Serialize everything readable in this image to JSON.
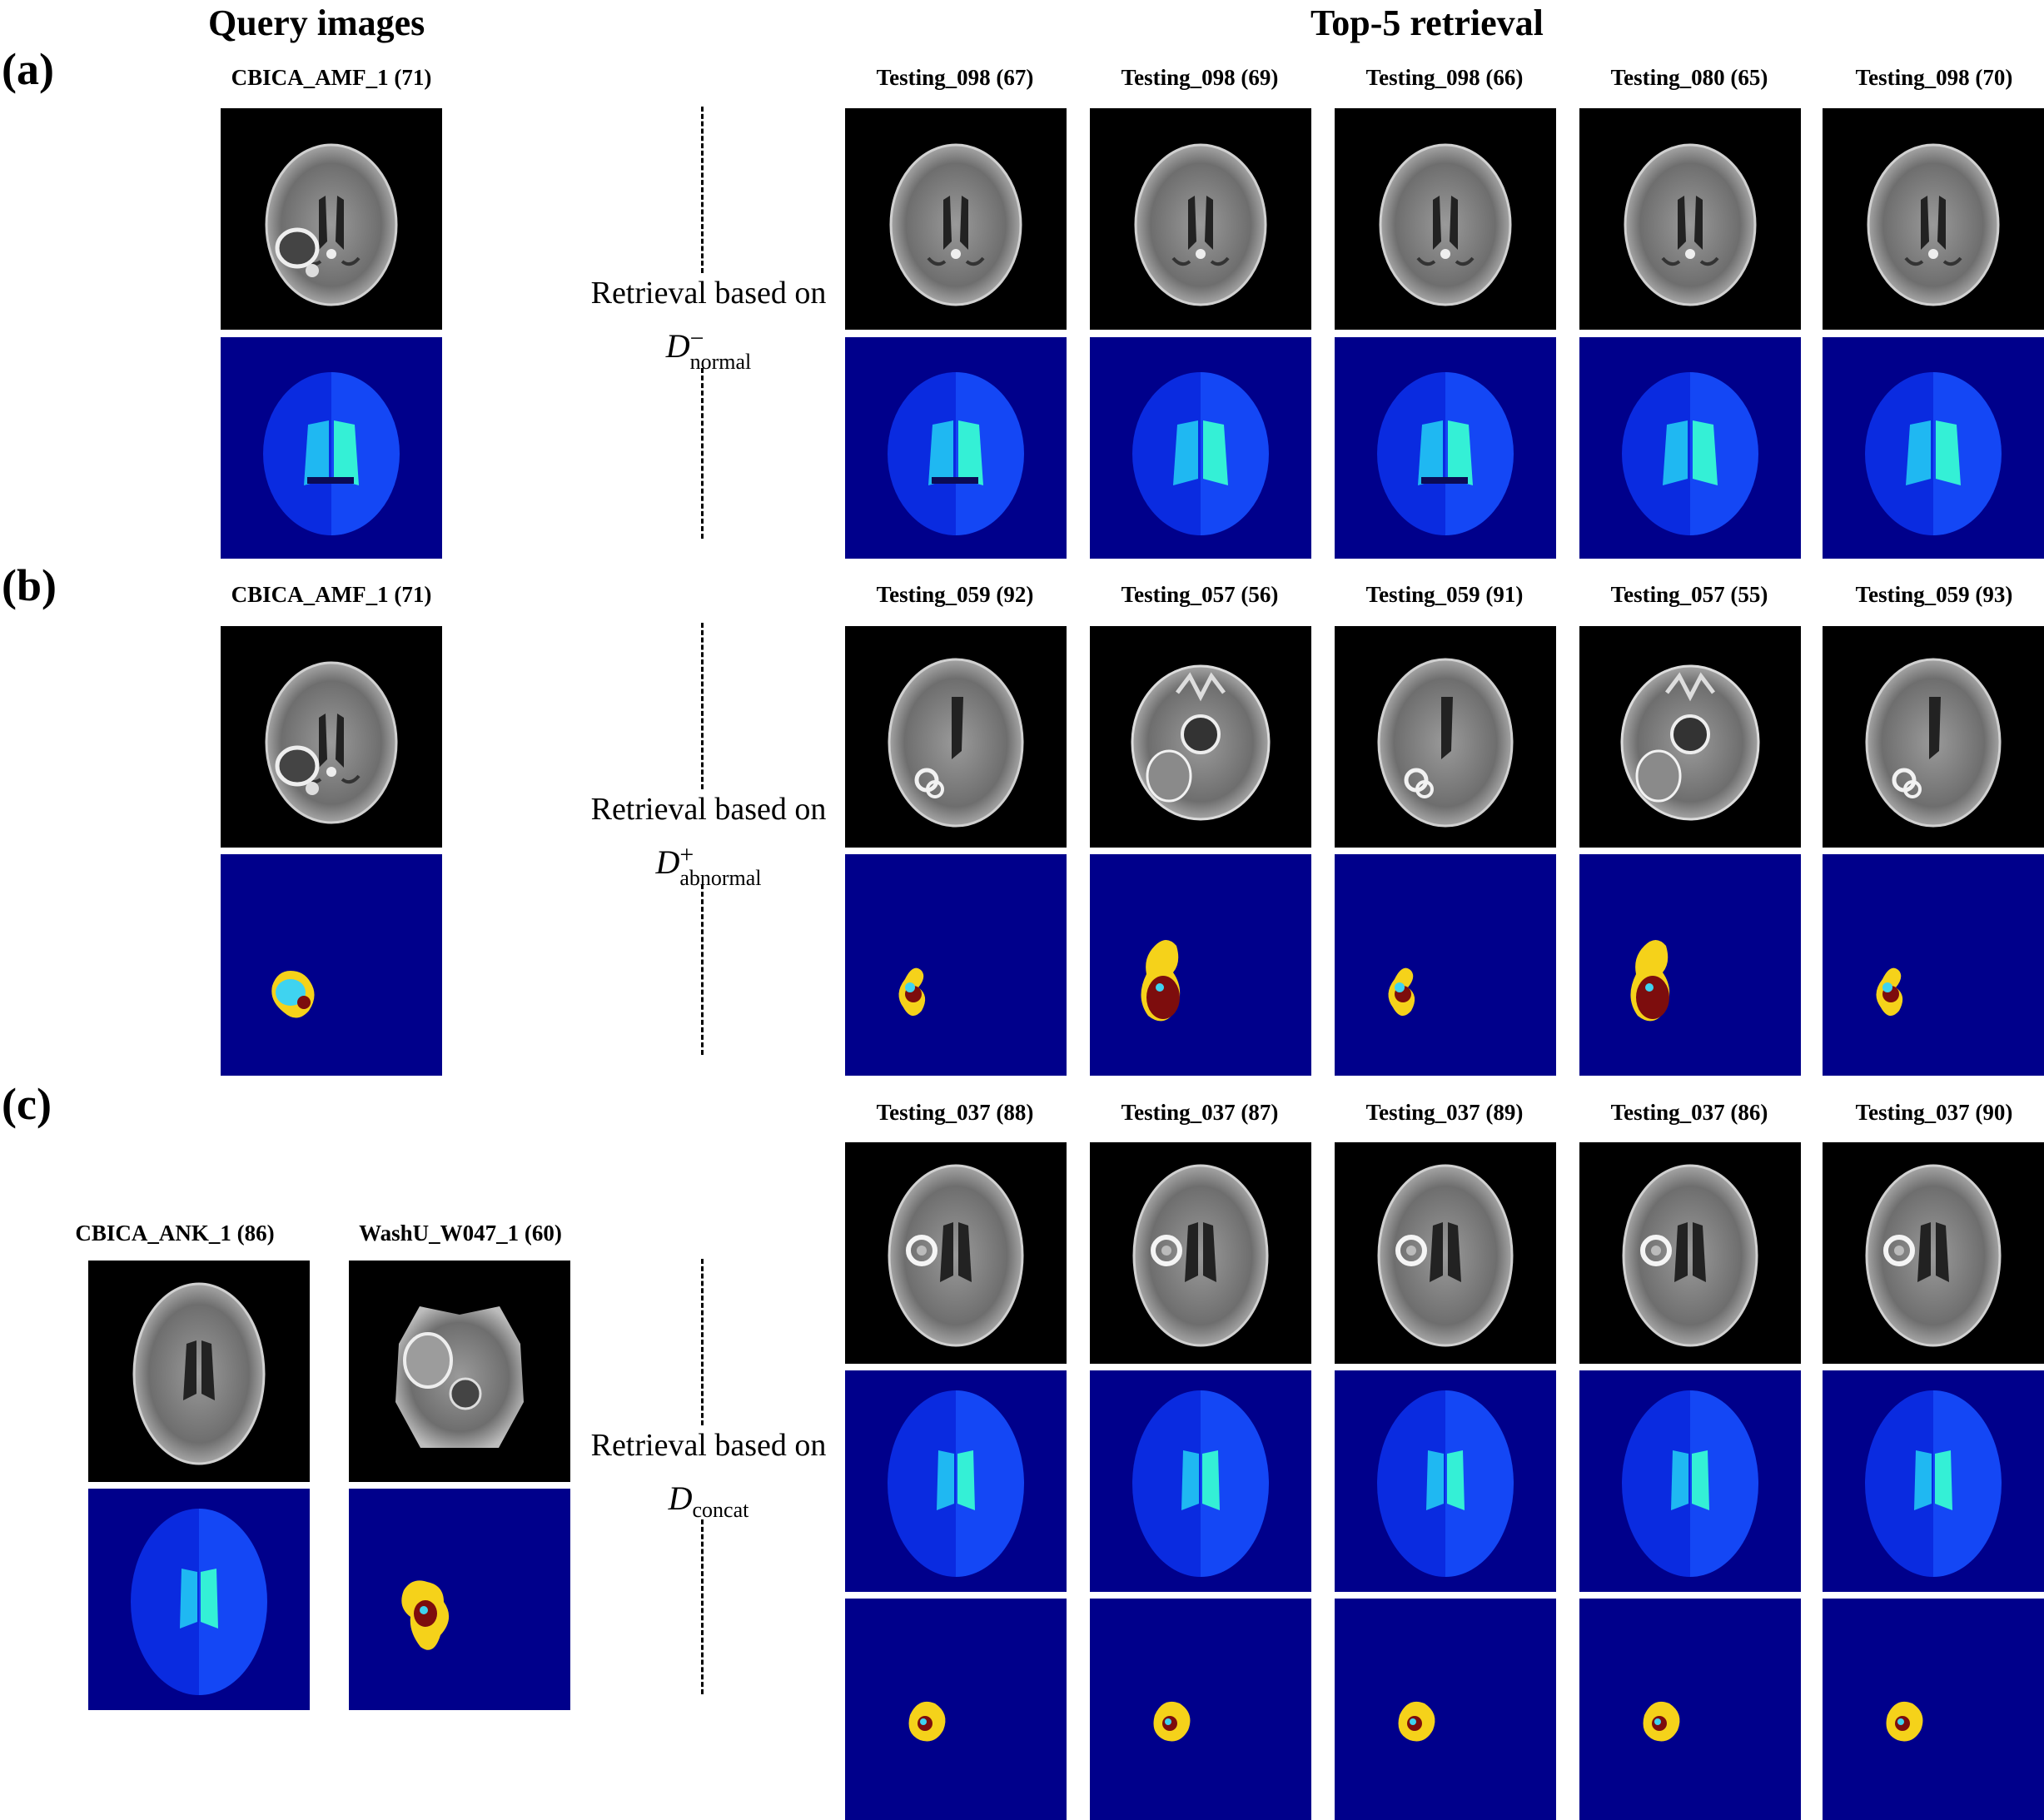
{
  "headings": {
    "query": "Query images",
    "retrieval": "Top-5 retrieval"
  },
  "panels": [
    {
      "label": "(a)",
      "query_captions": [
        "CBICA_AMF_1 (71)"
      ],
      "retrieval_prefix": "Retrieval based on",
      "descriptor": {
        "base": "D",
        "sup": "−",
        "sub": "normal"
      },
      "results": [
        "Testing_098 (67)",
        "Testing_098 (69)",
        "Testing_098 (66)",
        "Testing_080 (65)",
        "Testing_098 (70)"
      ]
    },
    {
      "label": "(b)",
      "query_captions": [
        "CBICA_AMF_1 (71)"
      ],
      "retrieval_prefix": "Retrieval based on",
      "descriptor": {
        "base": "D",
        "sup": "+",
        "sub": "abnormal"
      },
      "results": [
        "Testing_059 (92)",
        "Testing_057 (56)",
        "Testing_059 (91)",
        "Testing_057 (55)",
        "Testing_059 (93)"
      ]
    },
    {
      "label": "(c)",
      "query_captions": [
        "CBICA_ANK_1 (86)",
        "WashU_W047_1 (60)"
      ],
      "retrieval_prefix": "Retrieval based on",
      "descriptor": {
        "base": "D",
        "sup": "",
        "sub": "concat"
      },
      "results": [
        "Testing_037 (88)",
        "Testing_037 (87)",
        "Testing_037 (89)",
        "Testing_037 (86)",
        "Testing_037 (90)"
      ]
    }
  ],
  "colors": {
    "background_label": "#00008b",
    "brain_left": "#0a2be0",
    "brain_right": "#1447f5",
    "ventricle_left": "#1fb8f2",
    "ventricle_right": "#34f0d6",
    "tumor_edema": "#f5d21a",
    "tumor_core": "#7d0d0d",
    "tumor_enhancing": "#3fd3f0",
    "mri_background": "#000000"
  }
}
